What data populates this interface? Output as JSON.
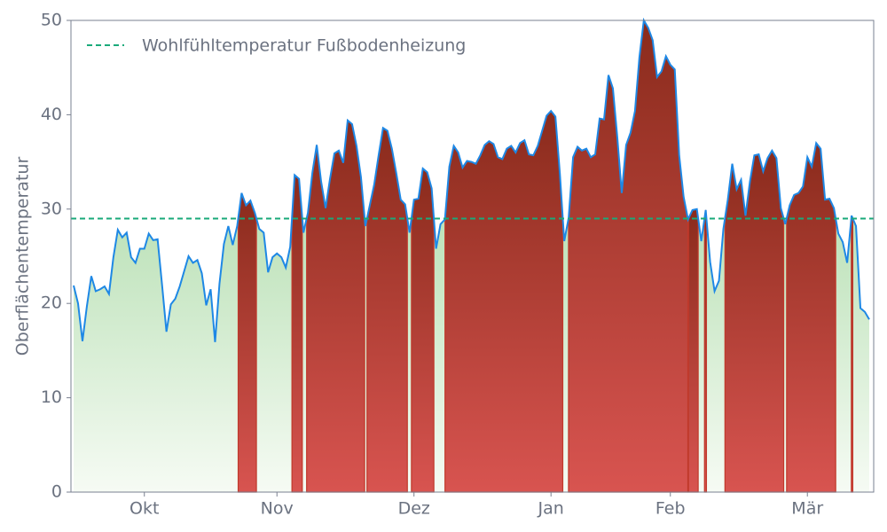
{
  "chart_data": {
    "type": "area",
    "y_label": "Oberflächentemperatur",
    "ylim": [
      0,
      50
    ],
    "yticks": [
      0,
      10,
      20,
      30,
      40,
      50
    ],
    "line_color": "#1e88e5",
    "below_fill_color": "#8fce8a",
    "above_fill_color": "#c0392b",
    "legend_position": "upper left",
    "threshold": {
      "name": "Wohlfühltemperatur Fußbodenheizung",
      "value": 29,
      "color": "#1aaa7a"
    },
    "categories": [
      null,
      null,
      null,
      null,
      null,
      null,
      null,
      null,
      null,
      null,
      null,
      null,
      null,
      null,
      null,
      null,
      "Okt",
      null,
      null,
      null,
      null,
      null,
      null,
      null,
      null,
      null,
      null,
      null,
      null,
      null,
      null,
      null,
      null,
      null,
      null,
      null,
      null,
      null,
      null,
      null,
      null,
      null,
      null,
      null,
      null,
      null,
      "Nov",
      null,
      null,
      null,
      null,
      null,
      null,
      null,
      null,
      null,
      null,
      null,
      null,
      null,
      null,
      null,
      null,
      null,
      null,
      null,
      null,
      null,
      null,
      null,
      null,
      null,
      null,
      null,
      null,
      null,
      null,
      "Dez",
      null,
      null,
      null,
      null,
      null,
      null,
      null,
      null,
      null,
      null,
      null,
      null,
      null,
      null,
      null,
      null,
      null,
      null,
      null,
      null,
      null,
      null,
      null,
      null,
      null,
      null,
      null,
      null,
      null,
      null,
      "Jan",
      null,
      null,
      null,
      null,
      null,
      null,
      null,
      null,
      null,
      null,
      null,
      null,
      null,
      null,
      null,
      null,
      null,
      null,
      null,
      null,
      null,
      null,
      null,
      null,
      null,
      null,
      "Feb",
      null,
      null,
      null,
      null,
      null,
      null,
      null,
      null,
      null,
      null,
      null,
      null,
      null,
      null,
      null,
      null,
      null,
      null,
      null,
      null,
      null,
      null,
      null,
      null,
      null,
      null,
      null,
      null,
      null,
      null,
      "Mär",
      null,
      null,
      null,
      null,
      null,
      null,
      null,
      null,
      null,
      null,
      null,
      null,
      null,
      null
    ],
    "values": [
      21.9,
      20,
      16,
      19.7,
      22.9,
      21.3,
      21.5,
      21.8,
      21,
      24.9,
      27.8,
      27,
      27.5,
      24.9,
      24.3,
      25.8,
      25.8,
      27.4,
      26.7,
      26.8,
      22,
      17,
      19.9,
      20.5,
      21.8,
      23.4,
      25,
      24.3,
      24.6,
      23.2,
      19.8,
      21.5,
      15.9,
      22.1,
      26.3,
      28.2,
      26.2,
      28.2,
      31.7,
      30.4,
      30.9,
      29.6,
      27.9,
      27.5,
      23.3,
      24.9,
      25.3,
      24.9,
      23.8,
      26,
      33.6,
      33.2,
      27.5,
      29.6,
      33.8,
      36.8,
      32.9,
      30.1,
      33.2,
      35.9,
      36.2,
      34.9,
      39.4,
      39,
      36.7,
      33.4,
      28.2,
      30.4,
      32.6,
      35.7,
      38.6,
      38.3,
      36.4,
      33.8,
      31,
      30.5,
      27.5,
      31,
      31.1,
      34.3,
      33.9,
      32.2,
      25.8,
      28.4,
      28.9,
      34.5,
      36.7,
      36,
      34.4,
      35.1,
      35,
      34.8,
      35.7,
      36.8,
      37.2,
      36.9,
      35.5,
      35.3,
      36.4,
      36.7,
      36,
      37,
      37.3,
      35.8,
      35.7,
      36.7,
      38.3,
      39.9,
      40.4,
      39.8,
      33.8,
      26.6,
      29.1,
      35.5,
      36.6,
      36.2,
      36.4,
      35.5,
      35.8,
      39.6,
      39.5,
      44.2,
      42.8,
      37.6,
      31.7,
      36.8,
      38.1,
      40.4,
      46.1,
      50,
      49.2,
      47.9,
      44,
      44.6,
      46.2,
      45.3,
      44.8,
      35.7,
      31.3,
      28.9,
      29.9,
      30,
      26.6,
      29.9,
      24.4,
      21.3,
      22.4,
      27.9,
      31,
      34.8,
      32.1,
      33.1,
      29.3,
      32.9,
      35.7,
      35.8,
      34,
      35.4,
      36.2,
      35.4,
      30.1,
      28.4,
      30.4,
      31.5,
      31.7,
      32.4,
      35.5,
      34.5,
      37,
      36.4,
      31,
      31.1,
      30.1,
      27.4,
      26.5,
      24.3,
      29.3,
      28.2,
      19.5,
      19.1,
      18.3
    ]
  }
}
